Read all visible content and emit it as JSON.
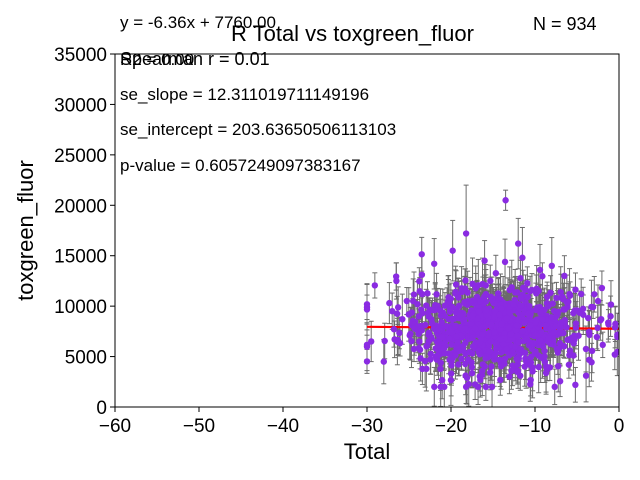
{
  "chart_data": {
    "type": "scatter",
    "title": "R Total vs toxgreen_fluor",
    "xlabel": "Total",
    "ylabel": "toxgreen_fluor",
    "xlim": [
      -60,
      0
    ],
    "ylim": [
      0,
      35000
    ],
    "x_ticks": [
      "-60",
      "-50",
      "-40",
      "-30",
      "-20",
      "-10",
      "0"
    ],
    "y_ticks": [
      "0",
      "5000",
      "10000",
      "15000",
      "20000",
      "25000",
      "30000",
      "35000"
    ],
    "grid": false,
    "legend": "none",
    "annotations": {
      "equation": "y = -6.36x + 7760.00",
      "r2": "R2 = 0.00",
      "spearman": "Spearman r = 0.01",
      "n": "N = 934",
      "se_slope": "se_slope = 12.311019711149196",
      "se_intercept": "se_intercept = 203.63650506113103",
      "p_value": "p-value = 0.6057249097383167"
    },
    "fit_line": {
      "slope": -6.36,
      "intercept": 7760.0,
      "x_range": [
        -30,
        0
      ]
    },
    "point_cloud": {
      "n": 934,
      "x_range": [
        -30,
        0
      ],
      "y_center": 7760,
      "y_spread": 2800,
      "error_bar_half_width": 1800,
      "samples": [
        [
          -13.5,
          20500,
          1000
        ],
        [
          -18.2,
          17200,
          4800
        ],
        [
          -19.8,
          15500,
          3000
        ],
        [
          -12.0,
          16200,
          2500
        ],
        [
          -26.5,
          12500,
          1800
        ],
        [
          -6.5,
          13000,
          2000
        ],
        [
          -4.5,
          11200,
          1500
        ],
        [
          -2.5,
          10500,
          1600
        ],
        [
          -29.5,
          6500,
          2000
        ],
        [
          -28.0,
          4500,
          2200
        ],
        [
          -1.0,
          9000,
          2000
        ],
        [
          -0.5,
          5200,
          1500
        ],
        [
          -22.0,
          14200,
          2500
        ],
        [
          -16.0,
          14500,
          2000
        ],
        [
          -11.5,
          14800,
          3000
        ],
        [
          -8.0,
          14000,
          2800
        ],
        [
          -24.5,
          10500,
          2200
        ],
        [
          -27.0,
          9500,
          1800
        ]
      ]
    },
    "colors": {
      "points": "#8a2be2",
      "error_bars": "#6b6b6b",
      "fit_line": "#ff0000",
      "axes": "#000000"
    }
  }
}
